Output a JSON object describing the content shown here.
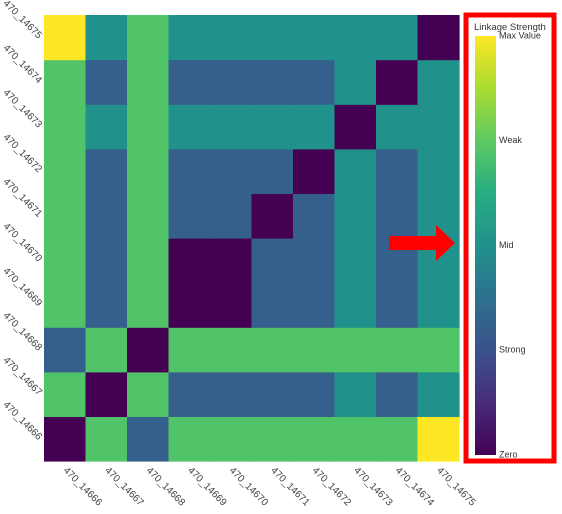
{
  "chart_data": {
    "type": "heatmap",
    "title": "",
    "xlabel": "",
    "ylabel": "",
    "x_categories": [
      "470_14666",
      "470_14667",
      "470_14668",
      "470_14669",
      "470_14670",
      "470_14671",
      "470_14672",
      "470_14673",
      "470_14674",
      "470_14675"
    ],
    "y_categories": [
      "470_14666",
      "470_14667",
      "470_14668",
      "470_14669",
      "470_14670",
      "470_14671",
      "470_14672",
      "470_14673",
      "470_14674",
      "470_14675"
    ],
    "y_order": "bottom-to-top",
    "colorscale": "viridis",
    "value_range": [
      0,
      1
    ],
    "z": [
      [
        0.0,
        0.72,
        0.3,
        0.72,
        0.72,
        0.72,
        0.72,
        0.72,
        0.72,
        1.0
      ],
      [
        0.72,
        0.0,
        0.72,
        0.3,
        0.3,
        0.3,
        0.3,
        0.5,
        0.3,
        0.5
      ],
      [
        0.3,
        0.72,
        0.0,
        0.72,
        0.72,
        0.72,
        0.72,
        0.72,
        0.72,
        0.72
      ],
      [
        0.72,
        0.3,
        0.72,
        0.0,
        0.0,
        0.3,
        0.3,
        0.5,
        0.3,
        0.5
      ],
      [
        0.72,
        0.3,
        0.72,
        0.0,
        0.0,
        0.3,
        0.3,
        0.5,
        0.3,
        0.5
      ],
      [
        0.72,
        0.3,
        0.72,
        0.3,
        0.3,
        0.0,
        0.3,
        0.5,
        0.3,
        0.5
      ],
      [
        0.72,
        0.3,
        0.72,
        0.3,
        0.3,
        0.3,
        0.0,
        0.5,
        0.3,
        0.5
      ],
      [
        0.72,
        0.5,
        0.72,
        0.5,
        0.5,
        0.5,
        0.5,
        0.0,
        0.5,
        0.5
      ],
      [
        0.72,
        0.3,
        0.72,
        0.3,
        0.3,
        0.3,
        0.3,
        0.5,
        0.0,
        0.5
      ],
      [
        1.0,
        0.5,
        0.72,
        0.5,
        0.5,
        0.5,
        0.5,
        0.5,
        0.5,
        0.0
      ]
    ],
    "colorbar": {
      "title": "Linkage Strength",
      "tick_labels": [
        {
          "label": "Max Value",
          "value": 1.0
        },
        {
          "label": "Weak",
          "value": 0.75
        },
        {
          "label": "Mid",
          "value": 0.5
        },
        {
          "label": "Strong",
          "value": 0.25
        },
        {
          "label": "Zero",
          "value": 0.0
        }
      ]
    },
    "annotations": {
      "arrow": {
        "color": "#ff0000",
        "points_to": "colorbar"
      },
      "highlight_box": {
        "color": "#ff0000",
        "surrounds": "colorbar"
      }
    }
  }
}
